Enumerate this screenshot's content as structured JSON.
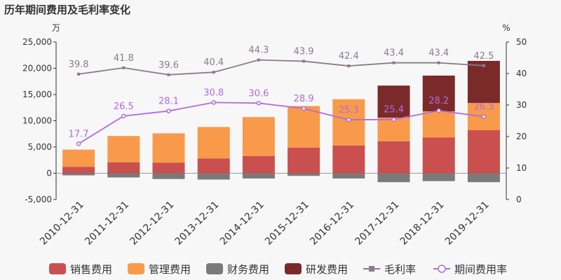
{
  "title": "历年期间费用及毛利率变化",
  "chart_data": {
    "type": "bar",
    "title": "历年期间费用及毛利率变化",
    "left_unit": "万",
    "right_unit": "%",
    "categories": [
      "2010-12-31",
      "2011-12-31",
      "2012-12-31",
      "2013-12-31",
      "2014-12-31",
      "2015-12-31",
      "2016-12-31",
      "2017-12-31",
      "2018-12-31",
      "2019-12-31"
    ],
    "ylim": [
      -5000,
      25000
    ],
    "y_ticks": [
      "-5,000",
      "0",
      "5,000",
      "10,000",
      "15,000",
      "20,000",
      "25,000"
    ],
    "y2lim": [
      0,
      50
    ],
    "y2_ticks": [
      "0",
      "10",
      "20",
      "30",
      "40",
      "50"
    ],
    "legend_position": "bottom",
    "series": [
      {
        "name": "销售费用",
        "type": "bar",
        "color": "#c9504f",
        "values": [
          1200,
          2100,
          2000,
          2800,
          3300,
          4900,
          5300,
          6100,
          6800,
          8200
        ]
      },
      {
        "name": "管理费用",
        "type": "bar",
        "color": "#f89a4a",
        "values": [
          3300,
          5000,
          5600,
          6000,
          7400,
          7900,
          8800,
          4500,
          5000,
          5200
        ]
      },
      {
        "name": "财务费用",
        "type": "bar",
        "color": "#7a7a7a",
        "values": [
          -400,
          -800,
          -1100,
          -1200,
          -1000,
          -500,
          -1000,
          -1700,
          -1500,
          -1700
        ]
      },
      {
        "name": "研发费用",
        "type": "bar",
        "color": "#7b2a2a",
        "values": [
          0,
          0,
          0,
          0,
          0,
          0,
          0,
          6100,
          6800,
          8000
        ]
      },
      {
        "name": "毛利率",
        "type": "line",
        "axis": "right",
        "color": "#8c7b8c",
        "values": [
          39.8,
          41.8,
          39.6,
          40.4,
          44.3,
          43.9,
          42.4,
          43.4,
          43.4,
          42.5
        ],
        "labels": [
          "39.8",
          "41.8",
          "39.6",
          "40.4",
          "44.3",
          "43.9",
          "42.4",
          "43.4",
          "43.4",
          "42.5"
        ]
      },
      {
        "name": "期间费用率",
        "type": "line",
        "axis": "right",
        "color": "#b06be0",
        "values": [
          17.7,
          26.5,
          28.1,
          30.8,
          30.6,
          28.9,
          25.3,
          25.4,
          28.2,
          26.3
        ],
        "labels": [
          "17.7",
          "26.5",
          "28.1",
          "30.8",
          "30.6",
          "28.9",
          "25.3",
          "25.4",
          "28.2",
          "26.3"
        ]
      }
    ]
  }
}
